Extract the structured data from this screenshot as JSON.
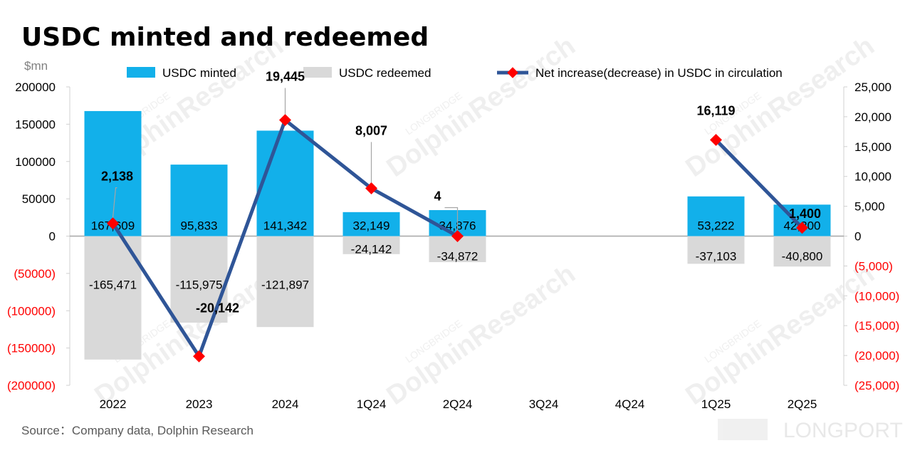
{
  "chart_data": {
    "type": "bar",
    "title": "USDC minted and redeemed",
    "unit_label": "$mn",
    "source": "Source：Company data, Dolphin Research",
    "categories": [
      "2022",
      "2023",
      "2024",
      "1Q24",
      "2Q24",
      "3Q24",
      "4Q24",
      "1Q25",
      "2Q25"
    ],
    "series": [
      {
        "name": "USDC minted",
        "type": "bar",
        "axis": "left",
        "color": "#12B0EA",
        "values": [
          167609,
          95833,
          141342,
          32149,
          34876,
          null,
          null,
          53222,
          42200
        ],
        "labels": [
          "167,609",
          "95,833",
          "141,342",
          "32,149",
          "34,876",
          "",
          "",
          "53,222",
          "42,200"
        ]
      },
      {
        "name": "USDC redeemed",
        "type": "bar",
        "axis": "left",
        "color": "#D9D9D9",
        "values": [
          -165471,
          -115975,
          -121897,
          -24142,
          -34872,
          null,
          null,
          -37103,
          -40800
        ],
        "labels": [
          "-165,471",
          "-115,975",
          "-121,897",
          "-24,142",
          "-34,872",
          "",
          "",
          "-37,103",
          "-40,800"
        ]
      },
      {
        "name": "Net increase(decrease) in USDC in circulation",
        "type": "line",
        "axis": "right",
        "color": "#2F5597",
        "marker_color": "#FF0000",
        "values": [
          2138,
          -20142,
          19445,
          8007,
          4,
          null,
          null,
          16119,
          1400
        ],
        "labels": [
          "2,138",
          "-20,142",
          "19,445",
          "8,007",
          "4",
          "",
          "",
          "16,119",
          "1,400"
        ]
      }
    ],
    "y_left": {
      "range": [
        -200000,
        200000
      ],
      "ticks": [
        200000,
        150000,
        100000,
        50000,
        0,
        -50000,
        -100000,
        -150000,
        -200000
      ],
      "tick_labels": [
        "200000",
        "150000",
        "100000",
        "50000",
        "0",
        "(50000)",
        "(100000)",
        "(150000)",
        "(200000)"
      ]
    },
    "y_right": {
      "range": [
        -25000,
        25000
      ],
      "ticks": [
        25000,
        20000,
        15000,
        10000,
        5000,
        0,
        -5000,
        -10000,
        -15000,
        -20000,
        -25000
      ],
      "tick_labels": [
        "25,000",
        "20,000",
        "15,000",
        "10,000",
        "5,000",
        "0",
        "(5,000)",
        "(10,000)",
        "(15,000)",
        "(20,000)",
        "(25,000)"
      ]
    },
    "negative_tick_color": "#FF0000",
    "legend_position": "top",
    "grid": false
  },
  "watermark": {
    "brand_small": "LONGBRIDGE",
    "brand_large": "DolphinResearch",
    "footer_brand": "LONGPORT"
  }
}
